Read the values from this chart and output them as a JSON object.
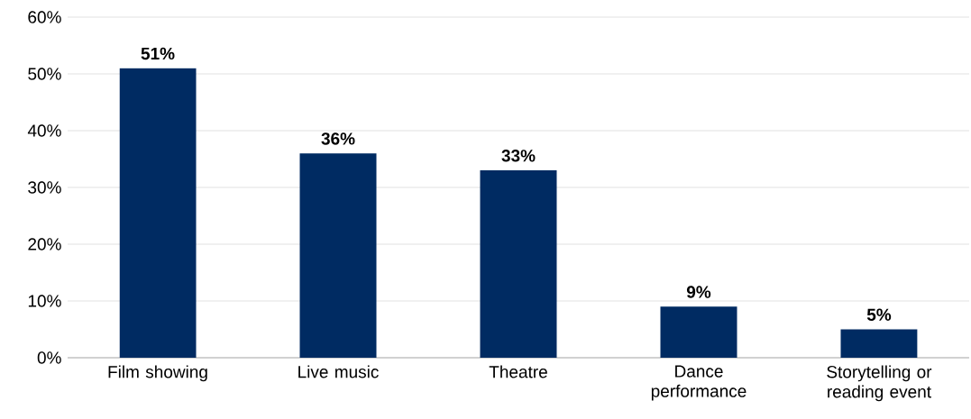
{
  "chart_data": {
    "type": "bar",
    "categories": [
      "Film showing",
      "Live music",
      "Theatre",
      "Dance performance",
      "Storytelling or reading event"
    ],
    "values": [
      51,
      36,
      33,
      9,
      5
    ],
    "value_labels": [
      "51%",
      "36%",
      "33%",
      "9%",
      "5%"
    ],
    "color": "#002b62",
    "ylim": [
      0,
      60
    ],
    "yticks": [
      {
        "value": 0,
        "label": "0%"
      },
      {
        "value": 10,
        "label": "10%"
      },
      {
        "value": 20,
        "label": "20%"
      },
      {
        "value": 30,
        "label": "30%"
      },
      {
        "value": 40,
        "label": "40%"
      },
      {
        "value": 50,
        "label": "50%"
      },
      {
        "value": 60,
        "label": "60%"
      }
    ],
    "grid": "y"
  }
}
